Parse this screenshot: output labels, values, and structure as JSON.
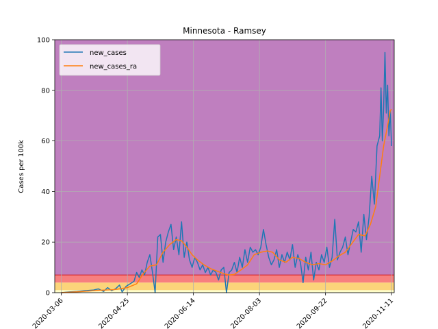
{
  "chart_data": {
    "type": "line",
    "title": "Minnesota - Ramsey",
    "xlabel": "",
    "ylabel": "Cases per 100k",
    "x_start": "2020-03-01",
    "x_end": "2020-11-13",
    "ylim": [
      0,
      100
    ],
    "grid": true,
    "legend_position": "top-left",
    "x_ticks": [
      {
        "date": "2020-03-06",
        "label": "2020-03-06"
      },
      {
        "date": "2020-04-25",
        "label": "2020-04-25"
      },
      {
        "date": "2020-06-14",
        "label": "2020-06-14"
      },
      {
        "date": "2020-08-03",
        "label": "2020-08-03"
      },
      {
        "date": "2020-09-22",
        "label": "2020-09-22"
      },
      {
        "date": "2020-11-11",
        "label": "2020-11-11"
      }
    ],
    "y_ticks": [
      0,
      20,
      40,
      60,
      80,
      100
    ],
    "bands": [
      {
        "from": 0,
        "to": 1,
        "color": "#fffec8"
      },
      {
        "from": 1,
        "to": 4,
        "color": "#fbd47a"
      },
      {
        "from": 4,
        "to": 7,
        "color": "#f77f7f"
      },
      {
        "from": 7,
        "to": 100,
        "color": "#bf7fbf"
      }
    ],
    "band_line": {
      "value": 7,
      "color": "#d62728"
    },
    "series": [
      {
        "name": "new_cases",
        "color": "#1f77b4",
        "points": [
          [
            "2020-03-06",
            0.0
          ],
          [
            "2020-03-12",
            0.3
          ],
          [
            "2020-03-18",
            0.5
          ],
          [
            "2020-03-24",
            0.8
          ],
          [
            "2020-03-30",
            1.0
          ],
          [
            "2020-04-03",
            1.5
          ],
          [
            "2020-04-07",
            0.5
          ],
          [
            "2020-04-10",
            2.0
          ],
          [
            "2020-04-13",
            0.8
          ],
          [
            "2020-04-16",
            1.5
          ],
          [
            "2020-04-19",
            3.0
          ],
          [
            "2020-04-21",
            0.3
          ],
          [
            "2020-04-24",
            2.5
          ],
          [
            "2020-04-27",
            3.5
          ],
          [
            "2020-04-30",
            4.5
          ],
          [
            "2020-05-02",
            8.0
          ],
          [
            "2020-05-04",
            6.0
          ],
          [
            "2020-05-06",
            9.0
          ],
          [
            "2020-05-08",
            7.0
          ],
          [
            "2020-05-10",
            12.0
          ],
          [
            "2020-05-12",
            15.0
          ],
          [
            "2020-05-14",
            8.0
          ],
          [
            "2020-05-16",
            0.0
          ],
          [
            "2020-05-18",
            22.0
          ],
          [
            "2020-05-20",
            23.0
          ],
          [
            "2020-05-22",
            12.0
          ],
          [
            "2020-05-24",
            20.0
          ],
          [
            "2020-05-26",
            24.0
          ],
          [
            "2020-05-28",
            27.0
          ],
          [
            "2020-05-30",
            17.0
          ],
          [
            "2020-06-01",
            22.0
          ],
          [
            "2020-06-03",
            15.0
          ],
          [
            "2020-06-05",
            28.0
          ],
          [
            "2020-06-07",
            14.0
          ],
          [
            "2020-06-09",
            20.0
          ],
          [
            "2020-06-11",
            13.0
          ],
          [
            "2020-06-13",
            10.0
          ],
          [
            "2020-06-15",
            14.0
          ],
          [
            "2020-06-17",
            12.0
          ],
          [
            "2020-06-19",
            9.0
          ],
          [
            "2020-06-21",
            11.0
          ],
          [
            "2020-06-23",
            8.0
          ],
          [
            "2020-06-25",
            10.0
          ],
          [
            "2020-06-27",
            7.0
          ],
          [
            "2020-06-29",
            9.0
          ],
          [
            "2020-07-01",
            8.0
          ],
          [
            "2020-07-03",
            5.0
          ],
          [
            "2020-07-05",
            9.0
          ],
          [
            "2020-07-07",
            10.0
          ],
          [
            "2020-07-09",
            0.0
          ],
          [
            "2020-07-11",
            8.0
          ],
          [
            "2020-07-13",
            9.0
          ],
          [
            "2020-07-15",
            12.0
          ],
          [
            "2020-07-17",
            8.0
          ],
          [
            "2020-07-19",
            14.0
          ],
          [
            "2020-07-21",
            10.0
          ],
          [
            "2020-07-23",
            17.0
          ],
          [
            "2020-07-25",
            12.0
          ],
          [
            "2020-07-27",
            18.0
          ],
          [
            "2020-07-29",
            16.0
          ],
          [
            "2020-07-31",
            17.0
          ],
          [
            "2020-08-02",
            15.0
          ],
          [
            "2020-08-04",
            18.0
          ],
          [
            "2020-08-06",
            25.0
          ],
          [
            "2020-08-08",
            19.0
          ],
          [
            "2020-08-10",
            14.0
          ],
          [
            "2020-08-12",
            11.0
          ],
          [
            "2020-08-14",
            13.0
          ],
          [
            "2020-08-16",
            17.0
          ],
          [
            "2020-08-18",
            10.0
          ],
          [
            "2020-08-20",
            15.0
          ],
          [
            "2020-08-22",
            12.0
          ],
          [
            "2020-08-24",
            16.0
          ],
          [
            "2020-08-26",
            13.0
          ],
          [
            "2020-08-28",
            19.0
          ],
          [
            "2020-08-30",
            10.0
          ],
          [
            "2020-09-01",
            15.0
          ],
          [
            "2020-09-03",
            12.0
          ],
          [
            "2020-09-05",
            4.0
          ],
          [
            "2020-09-07",
            14.0
          ],
          [
            "2020-09-09",
            9.0
          ],
          [
            "2020-09-11",
            16.0
          ],
          [
            "2020-09-13",
            5.0
          ],
          [
            "2020-09-15",
            12.0
          ],
          [
            "2020-09-17",
            9.0
          ],
          [
            "2020-09-19",
            15.0
          ],
          [
            "2020-09-21",
            12.0
          ],
          [
            "2020-09-23",
            18.0
          ],
          [
            "2020-09-25",
            10.0
          ],
          [
            "2020-09-27",
            14.0
          ],
          [
            "2020-09-29",
            29.0
          ],
          [
            "2020-10-01",
            13.0
          ],
          [
            "2020-10-03",
            16.0
          ],
          [
            "2020-10-05",
            18.0
          ],
          [
            "2020-10-07",
            22.0
          ],
          [
            "2020-10-09",
            15.0
          ],
          [
            "2020-10-11",
            20.0
          ],
          [
            "2020-10-13",
            25.0
          ],
          [
            "2020-10-15",
            24.0
          ],
          [
            "2020-10-17",
            28.0
          ],
          [
            "2020-10-19",
            16.0
          ],
          [
            "2020-10-21",
            31.0
          ],
          [
            "2020-10-23",
            21.0
          ],
          [
            "2020-10-25",
            30.0
          ],
          [
            "2020-10-27",
            46.0
          ],
          [
            "2020-10-29",
            35.0
          ],
          [
            "2020-10-31",
            58.0
          ],
          [
            "2020-11-02",
            62.0
          ],
          [
            "2020-11-03",
            81.0
          ],
          [
            "2020-11-04",
            60.0
          ],
          [
            "2020-11-05",
            73.0
          ],
          [
            "2020-11-06",
            95.0
          ],
          [
            "2020-11-07",
            71.0
          ],
          [
            "2020-11-08",
            82.0
          ],
          [
            "2020-11-09",
            62.0
          ],
          [
            "2020-11-10",
            72.0
          ],
          [
            "2020-11-11",
            58.0
          ]
        ]
      },
      {
        "name": "new_cases_ra",
        "color": "#ff7f0e",
        "points": [
          [
            "2020-03-06",
            0.0
          ],
          [
            "2020-03-20",
            0.4
          ],
          [
            "2020-04-03",
            0.9
          ],
          [
            "2020-04-15",
            1.2
          ],
          [
            "2020-04-25",
            2.0
          ],
          [
            "2020-05-02",
            3.5
          ],
          [
            "2020-05-07",
            7.5
          ],
          [
            "2020-05-12",
            10.5
          ],
          [
            "2020-05-17",
            11.0
          ],
          [
            "2020-05-22",
            16.0
          ],
          [
            "2020-05-27",
            19.0
          ],
          [
            "2020-06-01",
            21.0
          ],
          [
            "2020-06-05",
            20.5
          ],
          [
            "2020-06-09",
            18.0
          ],
          [
            "2020-06-13",
            15.0
          ],
          [
            "2020-06-17",
            13.0
          ],
          [
            "2020-06-22",
            11.0
          ],
          [
            "2020-06-27",
            9.5
          ],
          [
            "2020-07-02",
            8.5
          ],
          [
            "2020-07-07",
            7.5
          ],
          [
            "2020-07-11",
            7.0
          ],
          [
            "2020-07-15",
            7.2
          ],
          [
            "2020-07-20",
            9.0
          ],
          [
            "2020-07-25",
            11.0
          ],
          [
            "2020-07-30",
            15.0
          ],
          [
            "2020-08-04",
            16.0
          ],
          [
            "2020-08-09",
            16.5
          ],
          [
            "2020-08-13",
            16.0
          ],
          [
            "2020-08-18",
            13.0
          ],
          [
            "2020-08-23",
            12.0
          ],
          [
            "2020-08-28",
            14.0
          ],
          [
            "2020-09-02",
            13.5
          ],
          [
            "2020-09-07",
            12.0
          ],
          [
            "2020-09-12",
            11.0
          ],
          [
            "2020-09-17",
            11.5
          ],
          [
            "2020-09-22",
            11.0
          ],
          [
            "2020-09-27",
            12.5
          ],
          [
            "2020-10-02",
            14.5
          ],
          [
            "2020-10-07",
            16.0
          ],
          [
            "2020-10-12",
            19.5
          ],
          [
            "2020-10-17",
            23.0
          ],
          [
            "2020-10-22",
            22.5
          ],
          [
            "2020-10-26",
            27.0
          ],
          [
            "2020-10-30",
            34.0
          ],
          [
            "2020-11-02",
            46.0
          ],
          [
            "2020-11-05",
            58.0
          ],
          [
            "2020-11-08",
            66.0
          ],
          [
            "2020-11-10",
            72.0
          ],
          [
            "2020-11-11",
            72.5
          ]
        ]
      }
    ]
  }
}
